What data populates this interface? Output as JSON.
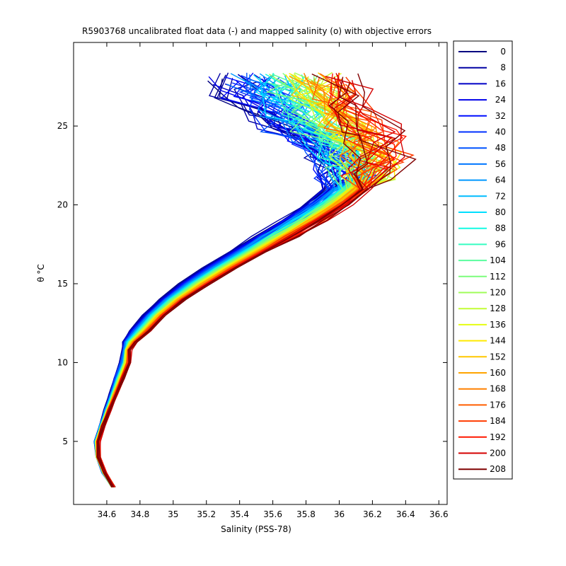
{
  "chart_data": {
    "type": "line",
    "title": "R5903768 uncalibrated float data (-) and mapped salinity (o) with objective errors",
    "xlabel": "Salinity (PSS-78)",
    "ylabel": "θ °C",
    "xlim": [
      34.4,
      36.65
    ],
    "ylim": [
      1,
      30.3
    ],
    "x_ticks": [
      34.6,
      34.8,
      35,
      35.2,
      35.4,
      35.6,
      35.8,
      36,
      36.2,
      36.4,
      36.6
    ],
    "x_tick_labels": [
      "34.6",
      "34.8",
      "35",
      "35.2",
      "35.4",
      "35.6",
      "35.8",
      "36",
      "36.2",
      "36.4",
      "36.6"
    ],
    "y_ticks": [
      5,
      10,
      15,
      20,
      25
    ],
    "y_tick_labels": [
      "5",
      "10",
      "15",
      "20",
      "25"
    ],
    "grid": false,
    "legend_position": "outside-right",
    "profile_cycles": [
      0,
      8,
      16,
      24,
      32,
      40,
      48,
      56,
      64,
      72,
      80,
      88,
      96,
      104,
      112,
      120,
      128,
      136,
      144,
      152,
      160,
      168,
      176,
      184,
      192,
      200,
      208
    ],
    "series": [
      {
        "name": "0",
        "color": "#000080"
      },
      {
        "name": "8",
        "color": "#0000a3"
      },
      {
        "name": "16",
        "color": "#0000c6"
      },
      {
        "name": "24",
        "color": "#0000e9"
      },
      {
        "name": "32",
        "color": "#000dff"
      },
      {
        "name": "40",
        "color": "#0030ff"
      },
      {
        "name": "48",
        "color": "#0053ff"
      },
      {
        "name": "56",
        "color": "#0076ff"
      },
      {
        "name": "64",
        "color": "#0099ff"
      },
      {
        "name": "72",
        "color": "#00bcff"
      },
      {
        "name": "80",
        "color": "#00dfff"
      },
      {
        "name": "88",
        "color": "#13fbe4"
      },
      {
        "name": "96",
        "color": "#36fdc1"
      },
      {
        "name": "104",
        "color": "#59fd9e"
      },
      {
        "name": "112",
        "color": "#7cfd7b"
      },
      {
        "name": "120",
        "color": "#9ffd58"
      },
      {
        "name": "128",
        "color": "#c2fd35"
      },
      {
        "name": "136",
        "color": "#e5fd12"
      },
      {
        "name": "144",
        "color": "#ffea00"
      },
      {
        "name": "152",
        "color": "#ffc700"
      },
      {
        "name": "160",
        "color": "#ffa400"
      },
      {
        "name": "168",
        "color": "#ff8100"
      },
      {
        "name": "176",
        "color": "#ff5e00"
      },
      {
        "name": "184",
        "color": "#ff3b00"
      },
      {
        "name": "192",
        "color": "#ff1800"
      },
      {
        "name": "200",
        "color": "#d40000"
      },
      {
        "name": "208",
        "color": "#800000"
      }
    ],
    "representative_profile": {
      "theta": [
        2.1,
        3,
        4,
        5,
        6,
        7,
        8,
        9,
        10,
        10.8,
        11.3,
        12,
        13,
        14,
        15,
        16,
        17,
        18,
        19,
        20,
        21,
        22,
        23,
        24,
        25,
        26,
        27,
        28
      ],
      "salinity_first": [
        34.64,
        34.58,
        34.54,
        34.53,
        34.56,
        34.59,
        34.62,
        34.65,
        34.68,
        34.7,
        34.7,
        34.74,
        34.82,
        34.92,
        35.04,
        35.18,
        35.34,
        35.5,
        35.66,
        35.8,
        35.92,
        35.97,
        35.92,
        35.8,
        35.62,
        35.48,
        35.38,
        35.32
      ],
      "salinity_last": [
        34.64,
        34.59,
        34.55,
        34.55,
        34.58,
        34.62,
        34.66,
        34.7,
        34.74,
        34.74,
        34.78,
        34.86,
        34.95,
        35.07,
        35.22,
        35.38,
        35.55,
        35.73,
        35.9,
        36.05,
        36.17,
        36.25,
        36.28,
        36.25,
        36.2,
        36.15,
        36.1,
        36.05
      ]
    }
  }
}
